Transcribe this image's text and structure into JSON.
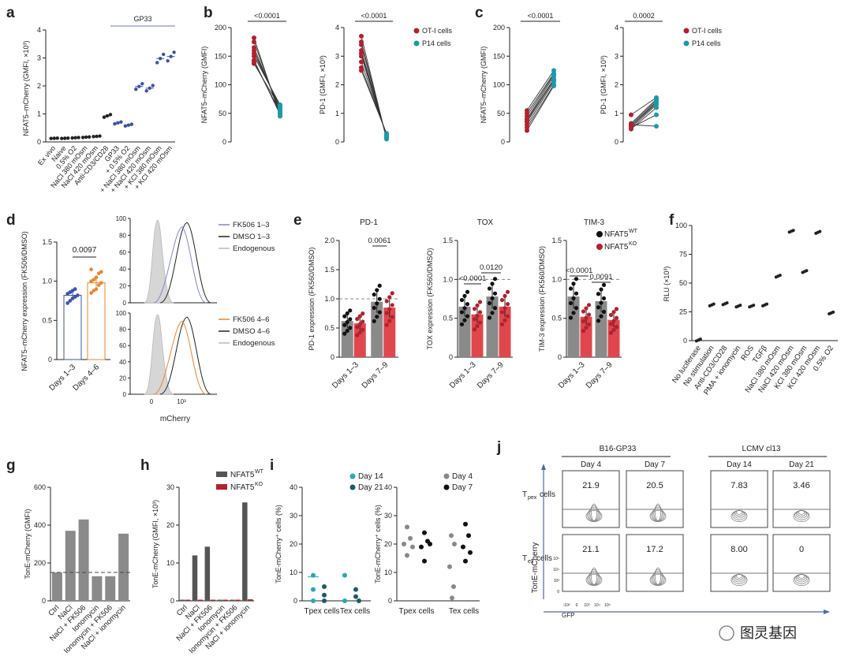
{
  "colors": {
    "ot1": "#b3202e",
    "p14": "#1a9aa8",
    "blue": "#3b52a8",
    "orange": "#e8862a",
    "grey": "#8a8a8a",
    "red": "#e0474c",
    "dark": "#222222",
    "teal_lt": "#22aab5",
    "teal_dk": "#1c5a6a"
  },
  "chart_data": [
    {
      "id": "a",
      "type": "scatter",
      "panel_label": "a",
      "ylabel": "NFAT5–mCherry (GMFI, ×10³)",
      "ylim": [
        0,
        4
      ],
      "yticks": [
        "0",
        "1",
        "2",
        "3",
        "4"
      ],
      "annotation": "GP33",
      "categories": [
        "Ex vivo",
        "Naive",
        "0.5% O2",
        "NaCl 380 mOsm",
        "NaCl 420 mOsm",
        "Anti-CD3/CD28",
        "GP33",
        "+ 0.5% O2",
        "+ NaCl 380 mOsm",
        "+ NaCl 420 mOsm",
        "+ KCl 380 mOsm",
        "+ KCl 420 mOsm"
      ],
      "values": [
        0.13,
        0.13,
        0.15,
        0.17,
        0.2,
        0.93,
        0.68,
        0.6,
        1.98,
        1.92,
        2.98,
        3.05
      ]
    },
    {
      "id": "b1",
      "type": "paired",
      "panel_label": "b",
      "ylabel": "NFAT5–mCherry (GMFI)",
      "ylim": [
        0,
        200
      ],
      "yticks": [
        "0",
        "50",
        "100",
        "150",
        "200"
      ],
      "pvalue": "<0.0001",
      "left": [
        182,
        175,
        165,
        160,
        155,
        150,
        143,
        140,
        137
      ],
      "right": [
        45,
        50,
        55,
        58,
        62,
        65,
        48,
        52,
        60
      ]
    },
    {
      "id": "b2",
      "type": "paired",
      "ylabel": "PD-1 (GMFI, ×10³)",
      "ylim": [
        0,
        4
      ],
      "yticks": [
        "0",
        "1",
        "2",
        "3",
        "4"
      ],
      "pvalue": "<0.0001",
      "left": [
        3.7,
        3.5,
        3.4,
        3.2,
        3.1,
        3.0,
        2.8,
        2.6,
        2.5
      ],
      "right": [
        0.1,
        0.12,
        0.15,
        0.18,
        0.2,
        0.22,
        0.25,
        0.28,
        0.3
      ],
      "legend": [
        "OT-I cells",
        "P14 cells"
      ]
    },
    {
      "id": "c1",
      "type": "paired",
      "panel_label": "c",
      "ylabel": "NFAT5–mCherry (GMFI)",
      "ylim": [
        0,
        200
      ],
      "yticks": [
        "0",
        "50",
        "100",
        "150",
        "200"
      ],
      "pvalue": "<0.0001",
      "left": [
        55,
        50,
        45,
        40,
        38,
        35,
        30,
        25,
        20
      ],
      "right": [
        125,
        120,
        118,
        115,
        110,
        108,
        105,
        100,
        98
      ]
    },
    {
      "id": "c2",
      "type": "paired",
      "ylabel": "PD-1 (GMFI, ×10³)",
      "ylim": [
        0,
        4
      ],
      "yticks": [
        "0",
        "1",
        "2",
        "3",
        "4"
      ],
      "pvalue": "0.0002",
      "left": [
        0.95,
        0.65,
        0.6,
        0.55,
        0.55,
        0.5,
        0.45,
        0.5,
        0.6
      ],
      "right": [
        1.55,
        1.5,
        1.45,
        1.4,
        1.35,
        1.3,
        1.2,
        0.95,
        0.55
      ],
      "legend": [
        "OT-I cells",
        "P14 cells"
      ]
    },
    {
      "id": "d1",
      "type": "bar",
      "panel_label": "d",
      "ylabel": "NFAT5–mCherry expression (FK506/DMSO)",
      "ylim": [
        0,
        1.5
      ],
      "yticks": [
        "0",
        "0.5",
        "1.0",
        "1.5"
      ],
      "categories": [
        "Days 1–3",
        "Days 4–6"
      ],
      "values": [
        0.82,
        0.98
      ],
      "pvalue": "0.0097",
      "points": [
        [
          0.72,
          0.75,
          0.78,
          0.8,
          0.82,
          0.84,
          0.86,
          0.88,
          0.9
        ],
        [
          0.85,
          0.88,
          0.9,
          0.95,
          0.98,
          1.0,
          1.02,
          1.05,
          1.1,
          1.12,
          1.15
        ]
      ]
    },
    {
      "id": "d2",
      "type": "histogram",
      "xlabel": "mCherry",
      "xticks": [
        "0",
        "10³"
      ],
      "yticks": [
        "0",
        "20",
        "40",
        "60",
        "80",
        "100"
      ],
      "top_legend": [
        "FK506 1–3",
        "DMSO 1–3",
        "Endogenous"
      ],
      "bottom_legend": [
        "FK506 4–6",
        "DMSO 4–6",
        "Endogenous"
      ]
    },
    {
      "id": "e1",
      "type": "bar",
      "panel_label": "e",
      "title": "PD-1",
      "ylabel": "PD-1 expression (FK560/DMSO)",
      "ylim": [
        0,
        2.0
      ],
      "yticks": [
        "0",
        "0.5",
        "1.0",
        "1.5",
        "2.0"
      ],
      "categories": [
        "Days 1–3",
        "Days 7–9"
      ],
      "series": [
        {
          "name": "NFAT5WT",
          "values": [
            0.62,
            0.95
          ]
        },
        {
          "name": "NFAT5KO",
          "values": [
            0.58,
            0.85
          ]
        }
      ],
      "pvalue": "0.0061"
    },
    {
      "id": "e2",
      "type": "bar",
      "title": "TOX",
      "ylabel": "TOX expression (FK560/DMSO)",
      "ylim": [
        0,
        1.5
      ],
      "yticks": [
        "0",
        "0.5",
        "1.0",
        "1.5"
      ],
      "categories": [
        "Days 1–3",
        "Days 7–9"
      ],
      "series": [
        {
          "name": "NFAT5WT",
          "values": [
            0.65,
            0.78
          ]
        },
        {
          "name": "NFAT5KO",
          "values": [
            0.55,
            0.65
          ]
        }
      ],
      "pvalues": [
        "<0.0001",
        "0.0120"
      ]
    },
    {
      "id": "e3",
      "type": "bar",
      "title": "TIM-3",
      "ylabel": "TIM-3 expression (FK560/DMSO)",
      "ylim": [
        0,
        1.5
      ],
      "yticks": [
        "0",
        "0.5",
        "1.0",
        "1.5"
      ],
      "categories": [
        "Days 1–3",
        "Days 7–9"
      ],
      "series": [
        {
          "name": "NFAT5WT",
          "values": [
            0.78,
            0.72
          ]
        },
        {
          "name": "NFAT5KO",
          "values": [
            0.52,
            0.48
          ]
        }
      ],
      "pvalues": [
        "<0.0001",
        "0.0091"
      ],
      "legend": [
        "NFAT5WT",
        "NFAT5KO"
      ]
    },
    {
      "id": "f",
      "type": "scatter",
      "panel_label": "f",
      "ylabel": "RLU (×10³)",
      "ylim": [
        0,
        100
      ],
      "yticks": [
        "0",
        "25",
        "50",
        "75",
        "100"
      ],
      "categories": [
        "No luciferase",
        "No stimulation",
        "Anti-CD3/CD28",
        "PMA + ionomycin",
        "ROS",
        "TGFβ",
        "NaCl 380 mOsm",
        "NaCl 420 mOsm",
        "KCl 380 mOsm",
        "KCl 420 mOsm",
        "0.5% O2"
      ],
      "values": [
        0.5,
        31,
        32,
        30,
        30,
        31,
        56,
        95,
        60,
        94,
        24
      ]
    },
    {
      "id": "g",
      "type": "bar",
      "panel_label": "g",
      "ylabel": "TonE-mCherry (GMFI)",
      "ylim": [
        0,
        600
      ],
      "yticks": [
        "0",
        "200",
        "400",
        "600"
      ],
      "reference_line": 150,
      "categories": [
        "Ctrl",
        "NaCl",
        "NaCl + FK506",
        "Ionomycin",
        "Ionomycin + FK506",
        "NaCl + ionomycin"
      ],
      "values": [
        150,
        370,
        430,
        130,
        130,
        355
      ]
    },
    {
      "id": "h",
      "type": "bar",
      "panel_label": "h",
      "ylabel": "TonE-mCherry (GMFI, ×10³)",
      "ylim": [
        0,
        30
      ],
      "yticks": [
        "0",
        "10",
        "20",
        "30"
      ],
      "categories": [
        "Ctrl",
        "NaCl",
        "NaCl + FK506",
        "Ionomycin",
        "Ionomycin + FK506",
        "NaCl + ionomycin"
      ],
      "series": [
        {
          "name": "NFAT5WT",
          "values": [
            0.3,
            12,
            14.3,
            0.3,
            0.3,
            26
          ]
        },
        {
          "name": "NFAT5KO",
          "values": [
            0.3,
            0.3,
            0.3,
            0.3,
            0.3,
            0.4
          ]
        }
      ],
      "legend": [
        "NFAT5WT",
        "NFAT5KO"
      ]
    },
    {
      "id": "i1",
      "type": "scatter",
      "panel_label": "i",
      "ylabel": "TonE-mCherry⁺ cells (%)",
      "ylim": [
        0,
        40
      ],
      "yticks": [
        "0",
        "10",
        "20",
        "30",
        "40"
      ],
      "categories": [
        "Tpex cells",
        "Tex cells"
      ],
      "legend": [
        "Day 14",
        "Day 21"
      ]
    },
    {
      "id": "i2",
      "type": "scatter",
      "ylabel": "TonE-mCherry⁺ cells (%)",
      "ylim": [
        0,
        40
      ],
      "yticks": [
        "0",
        "10",
        "20",
        "30",
        "40"
      ],
      "categories": [
        "Tpex cells",
        "Tex cells"
      ],
      "legend": [
        "Day 4",
        "Day 7"
      ]
    },
    {
      "id": "j",
      "type": "flow",
      "panel_label": "j",
      "group_titles": [
        "B16-GP33",
        "LCMV cl13"
      ],
      "columns": [
        "Day 4",
        "Day 7",
        "Day 14",
        "Day 21"
      ],
      "rows": [
        "Tpex cells",
        "Tex cells"
      ],
      "values": [
        [
          "21.9",
          "20.5",
          "7.83",
          "3.46"
        ],
        [
          "21.1",
          "17.2",
          "8.00",
          "0"
        ]
      ],
      "xlabel": "GFP",
      "ylabel": "TonE-mCherry",
      "ticks": [
        "-10³",
        "0",
        "10³",
        "10⁴",
        "10⁵"
      ]
    }
  ],
  "watermark": "图灵基因"
}
